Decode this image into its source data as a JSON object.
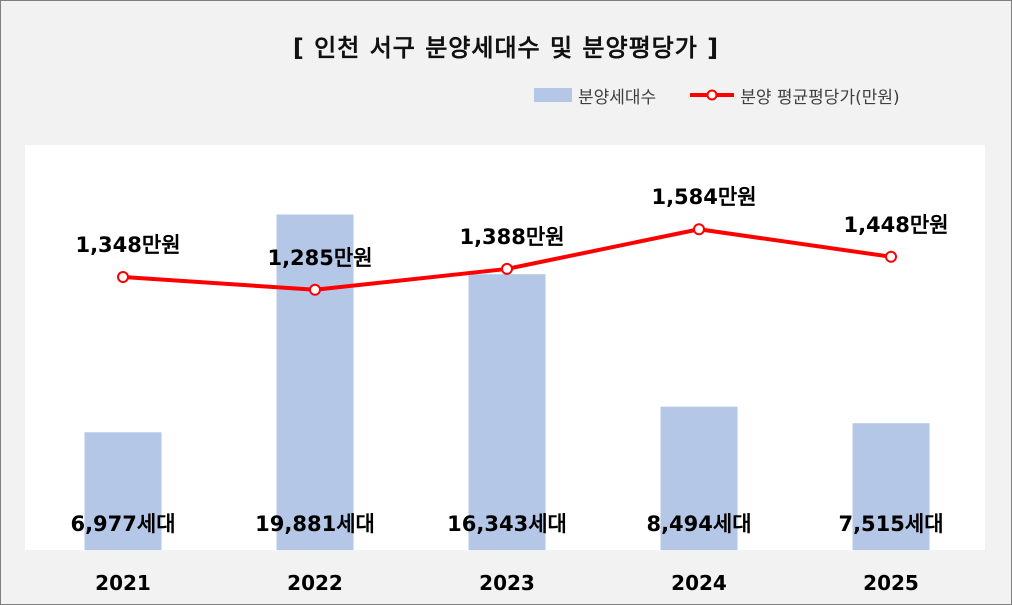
{
  "title": "[ 인천 서구 분양세대수 및 분양평당가 ]",
  "legend": {
    "bar_label": "분양세대수",
    "line_label": "분양 평균평당가(만원)"
  },
  "colors": {
    "bar": "#b4c7e7",
    "line": "#ff0000",
    "plot_bg": "#ffffff",
    "background": "#f2f2f2"
  },
  "chart_data": {
    "type": "bar",
    "categories": [
      "2021",
      "2022",
      "2023",
      "2024",
      "2025"
    ],
    "series": [
      {
        "name": "분양세대수",
        "type": "bar",
        "values": [
          6977,
          19881,
          16343,
          8494,
          7515
        ],
        "labels": [
          "6,977세대",
          "19,881세대",
          "16,343세대",
          "8,494세대",
          "7,515세대"
        ]
      },
      {
        "name": "분양 평균평당가(만원)",
        "type": "line",
        "values": [
          1348,
          1285,
          1388,
          1584,
          1448
        ],
        "labels": [
          "1,348만원",
          "1,285만원",
          "1,388만원",
          "1,584만원",
          "1,448만원"
        ]
      }
    ],
    "legend_position": "top-right",
    "grid": false
  }
}
